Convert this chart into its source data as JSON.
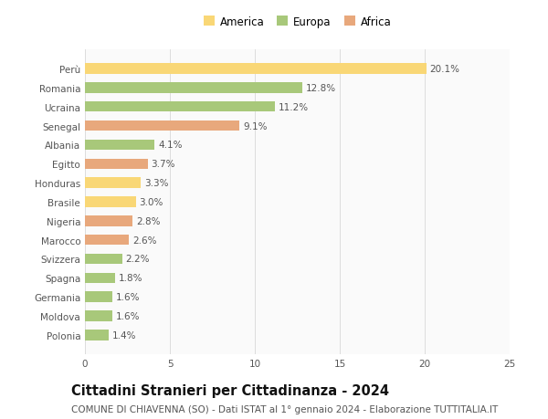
{
  "countries": [
    "Perù",
    "Romania",
    "Ucraina",
    "Senegal",
    "Albania",
    "Egitto",
    "Honduras",
    "Brasile",
    "Nigeria",
    "Marocco",
    "Svizzera",
    "Spagna",
    "Germania",
    "Moldova",
    "Polonia"
  ],
  "values": [
    20.1,
    12.8,
    11.2,
    9.1,
    4.1,
    3.7,
    3.3,
    3.0,
    2.8,
    2.6,
    2.2,
    1.8,
    1.6,
    1.6,
    1.4
  ],
  "continents": [
    "America",
    "Europa",
    "Europa",
    "Africa",
    "Europa",
    "Africa",
    "America",
    "America",
    "Africa",
    "Africa",
    "Europa",
    "Europa",
    "Europa",
    "Europa",
    "Europa"
  ],
  "colors": {
    "America": "#F9D776",
    "Europa": "#A8C87A",
    "Africa": "#E8A87C"
  },
  "legend_order": [
    "America",
    "Europa",
    "Africa"
  ],
  "xlim": [
    0,
    25
  ],
  "xticks": [
    0,
    5,
    10,
    15,
    20,
    25
  ],
  "title": "Cittadini Stranieri per Cittadinanza - 2024",
  "subtitle": "COMUNE DI CHIAVENNA (SO) - Dati ISTAT al 1° gennaio 2024 - Elaborazione TUTTITALIA.IT",
  "bg_color": "#FFFFFF",
  "plot_bg_color": "#FAFAFA",
  "grid_color": "#DDDDDD",
  "label_color": "#555555",
  "bar_label_color": "#555555",
  "title_fontsize": 10.5,
  "subtitle_fontsize": 7.5,
  "tick_fontsize": 7.5,
  "bar_label_fontsize": 7.5,
  "legend_fontsize": 8.5,
  "bar_height": 0.55
}
